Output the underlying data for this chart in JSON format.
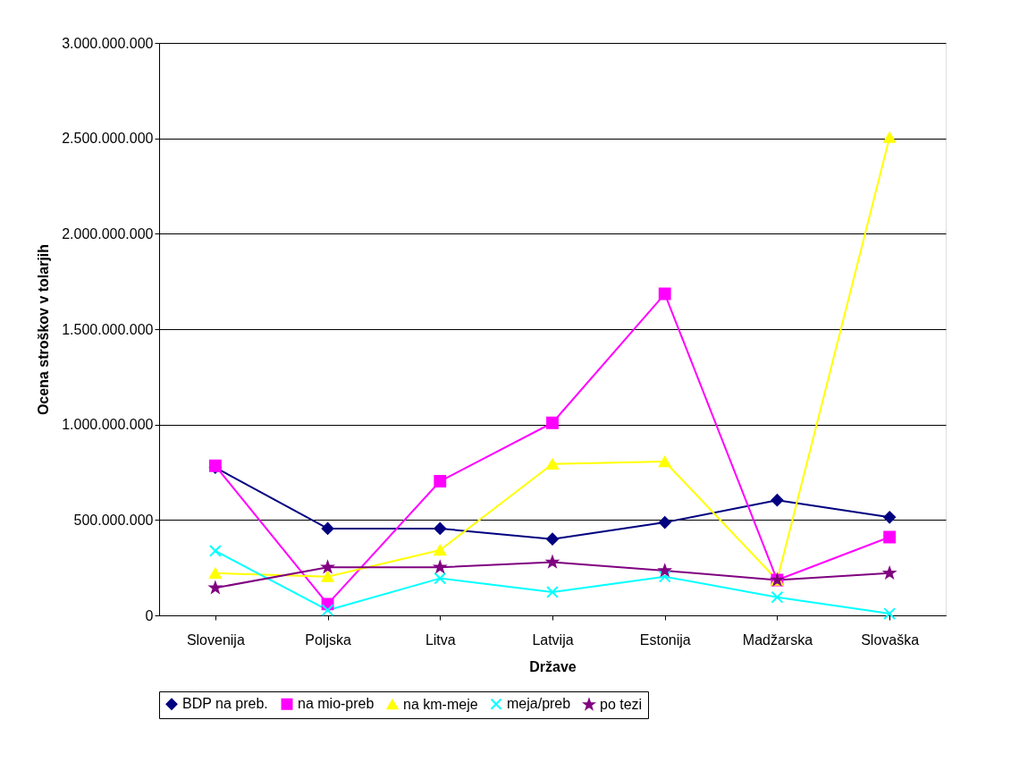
{
  "chart_data": {
    "type": "line",
    "xlabel": "Države",
    "ylabel": "Ocena stroškov v tolarjih",
    "categories": [
      "Slovenija",
      "Poljska",
      "Litva",
      "Latvija",
      "Estonija",
      "Madžarska",
      "Slovaška"
    ],
    "series": [
      {
        "name": "BDP na preb.",
        "color": "#000080",
        "marker": "diamond",
        "values": [
          775000000,
          455000000,
          455000000,
          400000000,
          487000000,
          604000000,
          514000000
        ]
      },
      {
        "name": "na mio-preb",
        "color": "#ff00ff",
        "marker": "square",
        "values": [
          784000000,
          59000000,
          703000000,
          1009000000,
          1685000000,
          185000000,
          410000000
        ]
      },
      {
        "name": "na km-meje",
        "color": "#ffff00",
        "marker": "triangle",
        "values": [
          221000000,
          203000000,
          342000000,
          793000000,
          806000000,
          185000000,
          2505000000
        ]
      },
      {
        "name": "meja/preb",
        "color": "#00ffff",
        "marker": "cross",
        "values": [
          338000000,
          27000000,
          194000000,
          122000000,
          203000000,
          95000000,
          9000000
        ]
      },
      {
        "name": "po tezi",
        "color": "#800080",
        "marker": "star",
        "values": [
          144000000,
          252000000,
          252000000,
          279000000,
          234000000,
          185000000,
          221000000
        ]
      }
    ],
    "ylim": [
      0,
      3000000000
    ],
    "yticks": [
      0,
      {
        "value": 500000000,
        "label": "500.000.000"
      },
      {
        "value": 1000000000,
        "label": "1.000.000.000"
      },
      {
        "value": 1500000000,
        "label": "1.500.000.000"
      },
      {
        "value": 2000000000,
        "label": "2.000.000.000"
      },
      {
        "value": 2500000000,
        "label": "2.500.000.000"
      },
      {
        "value": 3000000000,
        "label": "3.000.000.000"
      }
    ],
    "grid": "y",
    "legend": "bottom",
    "line_style": "solid"
  }
}
